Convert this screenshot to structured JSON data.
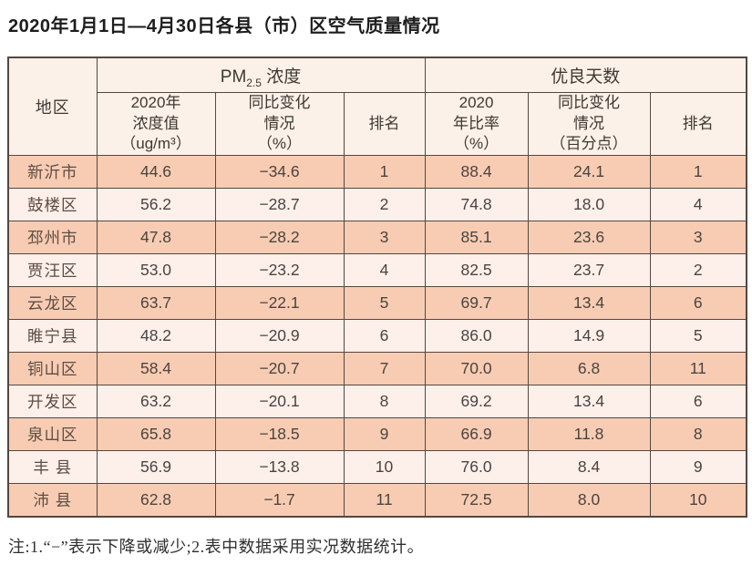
{
  "title": "2020年1月1日—4月30日各县（市）区空气质量情况",
  "note": "注:1.“−”表示下降或减少;2.表中数据采用实况数据统计。",
  "colors": {
    "row_dark": "#f8ccb3",
    "row_light": "#fdf0ea",
    "header_bg": "#fcf1e8",
    "border": "#544740"
  },
  "header": {
    "region": "地区",
    "group_pm": {
      "prefix": "PM",
      "sub": "2.5",
      "suffix": " 浓度"
    },
    "group_good": "优良天数",
    "sub_cols": [
      "2020年\n浓度值\n（ug/m³）",
      "同比变化\n情况\n（%）",
      "排名",
      "2020\n年比率\n（%）",
      "同比变化\n情况\n（百分点）",
      "排名"
    ]
  },
  "chart_data": {
    "type": "table",
    "title": "2020年1月1日—4月30日各县（市）区空气质量情况",
    "column_groups": [
      "地区",
      "PM2.5浓度",
      "优良天数"
    ],
    "columns": [
      "地区",
      "2020年浓度值（ug/m³）",
      "同比变化情况（%）",
      "PM2.5排名",
      "2020年比率（%）",
      "同比变化情况（百分点）",
      "优良天数排名"
    ],
    "rows": [
      [
        "新沂市",
        "44.6",
        "−34.6",
        "1",
        "88.4",
        "24.1",
        "1"
      ],
      [
        "鼓楼区",
        "56.2",
        "−28.7",
        "2",
        "74.8",
        "18.0",
        "4"
      ],
      [
        "邳州市",
        "47.8",
        "−28.2",
        "3",
        "85.1",
        "23.6",
        "3"
      ],
      [
        "贾汪区",
        "53.0",
        "−23.2",
        "4",
        "82.5",
        "23.7",
        "2"
      ],
      [
        "云龙区",
        "63.7",
        "−22.1",
        "5",
        "69.7",
        "13.4",
        "6"
      ],
      [
        "睢宁县",
        "48.2",
        "−20.9",
        "6",
        "86.0",
        "14.9",
        "5"
      ],
      [
        "铜山区",
        "58.4",
        "−20.7",
        "7",
        "70.0",
        "6.8",
        "11"
      ],
      [
        "开发区",
        "63.2",
        "−20.1",
        "8",
        "69.2",
        "13.4",
        "6"
      ],
      [
        "泉山区",
        "65.8",
        "−18.5",
        "9",
        "66.9",
        "11.8",
        "8"
      ],
      [
        "丰 县",
        "56.9",
        "−13.8",
        "10",
        "76.0",
        "8.4",
        "9"
      ],
      [
        "沛 县",
        "62.8",
        "−1.7",
        "11",
        "72.5",
        "8.0",
        "10"
      ]
    ],
    "notes": "注:1.“−”表示下降或减少;2.表中数据采用实况数据统计。"
  }
}
